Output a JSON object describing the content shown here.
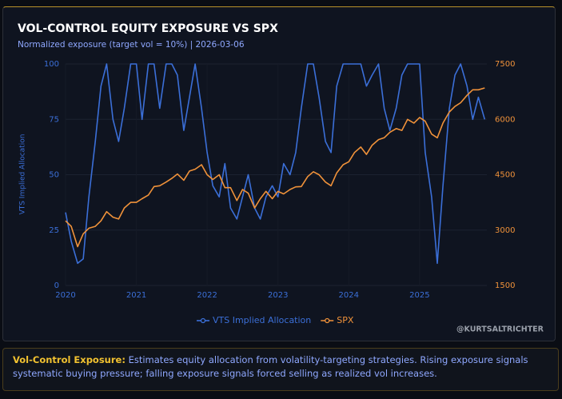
{
  "chart_data": {
    "type": "line",
    "title": "VOL-CONTROL EQUITY EXPOSURE VS SPX",
    "subtitle": "Normalized exposure (target vol = 10%) | 2026-03-06",
    "y_label": "VTS Implied Allocation",
    "credit": "@KURTSALTRICHTER",
    "x": [
      2020,
      2020.08,
      2020.17,
      2020.25,
      2020.33,
      2020.42,
      2020.5,
      2020.58,
      2020.67,
      2020.75,
      2020.83,
      2020.92,
      2021,
      2021.08,
      2021.17,
      2021.25,
      2021.33,
      2021.42,
      2021.5,
      2021.58,
      2021.67,
      2021.75,
      2021.83,
      2021.92,
      2022,
      2022.08,
      2022.17,
      2022.25,
      2022.33,
      2022.42,
      2022.5,
      2022.58,
      2022.67,
      2022.75,
      2022.83,
      2022.92,
      2023,
      2023.08,
      2023.17,
      2023.25,
      2023.33,
      2023.42,
      2023.5,
      2023.58,
      2023.67,
      2023.75,
      2023.83,
      2023.92,
      2024,
      2024.08,
      2024.17,
      2024.25,
      2024.33,
      2024.42,
      2024.5,
      2024.58,
      2024.67,
      2024.75,
      2024.83,
      2024.92,
      2025,
      2025.08,
      2025.17,
      2025.25,
      2025.33,
      2025.42,
      2025.5,
      2025.58,
      2025.67,
      2025.75,
      2025.83,
      2025.92
    ],
    "xlim": [
      2020,
      2025.95
    ],
    "xticks": [
      2020,
      2021,
      2022,
      2023,
      2024,
      2025
    ],
    "ylim": [
      0,
      100
    ],
    "yticks": [
      0,
      25,
      50,
      75,
      100
    ],
    "y2lim": [
      1500,
      7500
    ],
    "y2ticks": [
      1500,
      3000,
      4500,
      6000,
      7500
    ],
    "series": [
      {
        "name": "VTS Implied Allocation",
        "color": "#3b6fd8",
        "values": [
          33,
          20,
          10,
          12,
          40,
          65,
          90,
          100,
          75,
          65,
          80,
          100,
          100,
          75,
          100,
          100,
          80,
          100,
          100,
          95,
          70,
          85,
          100,
          80,
          60,
          45,
          40,
          55,
          35,
          30,
          40,
          50,
          35,
          30,
          40,
          45,
          40,
          55,
          50,
          60,
          80,
          100,
          100,
          85,
          65,
          60,
          90,
          100,
          100,
          100,
          100,
          90,
          95,
          100,
          80,
          70,
          80,
          95,
          100,
          100,
          100,
          60,
          40,
          10,
          45,
          80,
          95,
          100,
          90,
          75,
          85,
          75
        ]
      },
      {
        "name": "SPX",
        "color": "#f0923a",
        "axis": "y2",
        "values": [
          3250,
          3100,
          2550,
          2900,
          3050,
          3100,
          3250,
          3500,
          3350,
          3300,
          3600,
          3750,
          3750,
          3850,
          3950,
          4180,
          4200,
          4300,
          4400,
          4520,
          4350,
          4600,
          4650,
          4770,
          4500,
          4370,
          4500,
          4150,
          4150,
          3800,
          4100,
          4000,
          3600,
          3850,
          4050,
          3850,
          4050,
          3980,
          4100,
          4170,
          4180,
          4450,
          4580,
          4500,
          4300,
          4200,
          4550,
          4770,
          4850,
          5100,
          5250,
          5050,
          5300,
          5450,
          5500,
          5650,
          5750,
          5700,
          6000,
          5900,
          6050,
          5950,
          5600,
          5500,
          5900,
          6200,
          6350,
          6450,
          6650,
          6800,
          6800,
          6850
        ]
      }
    ]
  },
  "footer": {
    "lead": "Vol-Control Exposure:",
    "text": "Estimates equity allocation from volatility-targeting strategies. Rising exposure signals systematic buying pressure; falling exposure signals forced selling as realized vol increases."
  }
}
